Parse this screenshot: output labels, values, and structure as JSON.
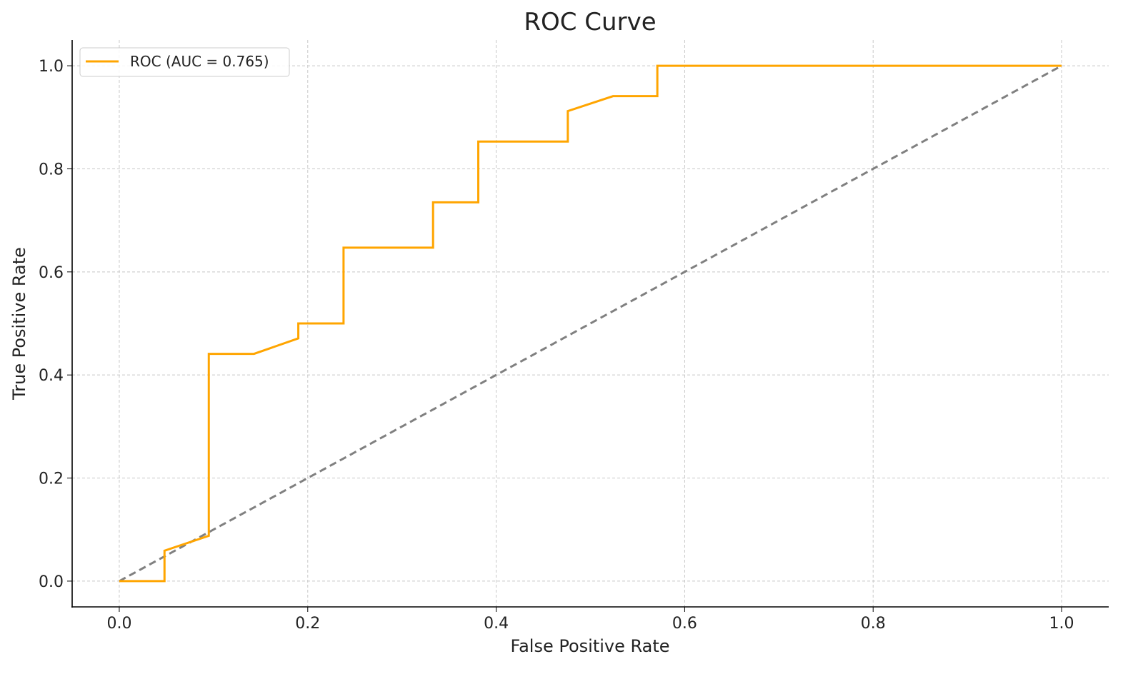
{
  "chart_data": {
    "type": "line",
    "title": "ROC Curve",
    "xlabel": "False Positive Rate",
    "ylabel": "True Positive Rate",
    "xlim": [
      -0.05,
      1.05
    ],
    "ylim": [
      -0.05,
      1.05
    ],
    "xticks": [
      "0.0",
      "0.2",
      "0.4",
      "0.6",
      "0.8",
      "1.0"
    ],
    "yticks": [
      "0.0",
      "0.2",
      "0.4",
      "0.6",
      "0.8",
      "1.0"
    ],
    "grid": true,
    "legend": "top-left",
    "series": [
      {
        "name": "ROC (AUC = 0.765)",
        "color": "#FFA500",
        "style": "solid",
        "x": [
          0,
          0.048,
          0.048,
          0.095,
          0.095,
          0.143,
          0.19,
          0.19,
          0.238,
          0.238,
          0.333,
          0.333,
          0.381,
          0.381,
          0.476,
          0.476,
          0.524,
          0.571,
          0.571,
          1.0
        ],
        "y": [
          0,
          0,
          0.059,
          0.088,
          0.441,
          0.441,
          0.471,
          0.5,
          0.5,
          0.647,
          0.647,
          0.735,
          0.735,
          0.853,
          0.853,
          0.912,
          0.941,
          0.941,
          1.0,
          1.0
        ]
      },
      {
        "color": "#808080",
        "style": "dashed",
        "x": [
          0,
          1
        ],
        "y": [
          0,
          1
        ]
      }
    ]
  }
}
